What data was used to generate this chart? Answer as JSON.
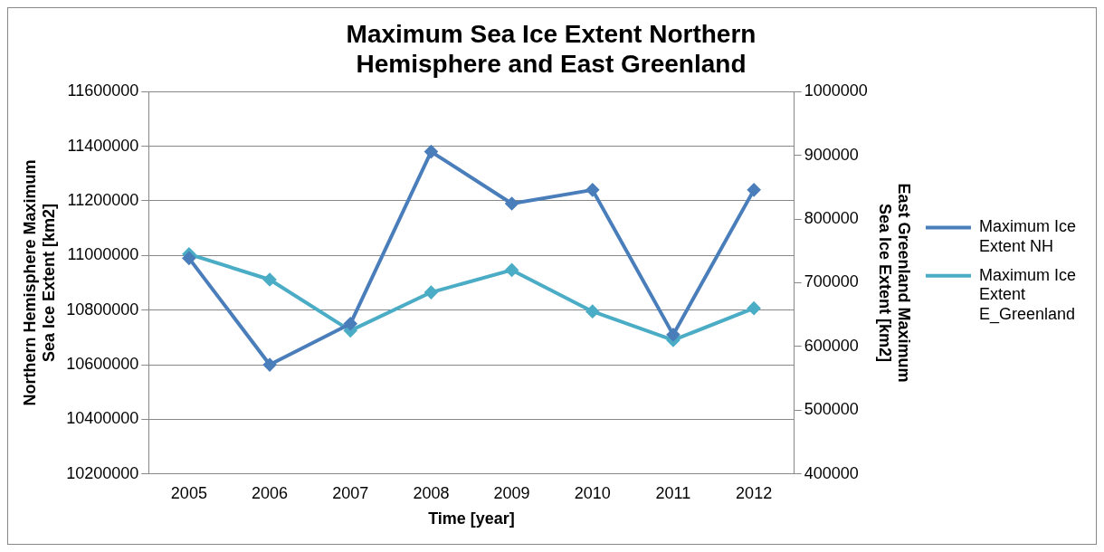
{
  "chart_data": {
    "type": "line",
    "title": "Maximum Sea Ice Extent Northern Hemisphere and East Greenland",
    "xlabel": "Time [year]",
    "ylabel": "Northern Hemisphere Maximum Sea Ice Extent [km2]",
    "y2label": "East Greenland Maximum Sea Ice Extent [km2]",
    "categories": [
      "2005",
      "2006",
      "2007",
      "2008",
      "2009",
      "2010",
      "2011",
      "2012"
    ],
    "series": [
      {
        "name": "Maximum Ice Extent NH",
        "color": "#4a7ebb",
        "values": [
          10990000,
          10600000,
          10750000,
          11380000,
          11190000,
          11240000,
          10710000,
          11240000
        ]
      },
      {
        "name": "Maximum Ice Extent E_Greenland",
        "color": "#4bacc6",
        "axis": "y2",
        "values": [
          745000,
          705000,
          625000,
          685000,
          720000,
          655000,
          610000,
          660000
        ]
      }
    ],
    "ylim": [
      10200000,
      11600000
    ],
    "yticks": [
      10200000,
      10400000,
      10600000,
      10800000,
      11000000,
      11200000,
      11400000,
      11600000
    ],
    "y2lim": [
      400000,
      1000000
    ],
    "y2ticks": [
      400000,
      500000,
      600000,
      700000,
      800000,
      900000,
      1000000
    ],
    "grid": "y",
    "legend": "right",
    "marker": "diamond",
    "line_style": "solid"
  }
}
